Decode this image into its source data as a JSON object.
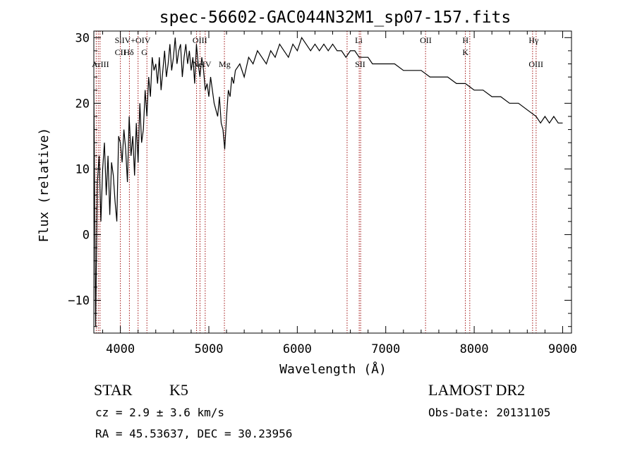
{
  "chart_data": {
    "type": "line",
    "title": "spec-56602-GAC044N32M1_sp07-157.fits",
    "xlabel": "Wavelength (Å)",
    "ylabel": "Flux (relative)",
    "xlim": [
      3700,
      9100
    ],
    "ylim": [
      -15,
      31
    ],
    "xticks": [
      4000,
      5000,
      6000,
      7000,
      8000,
      9000
    ],
    "yticks": [
      -10,
      0,
      10,
      20,
      30
    ],
    "grid": false,
    "series": [
      {
        "values_x": [
          3700,
          3720,
          3740,
          3760,
          3780,
          3800,
          3820,
          3840,
          3860,
          3880,
          3900,
          3920,
          3940,
          3960,
          3980,
          4000,
          4020,
          4040,
          4060,
          4080,
          4100,
          4120,
          4140,
          4160,
          4180,
          4200,
          4220,
          4240,
          4260,
          4280,
          4300,
          4320,
          4340,
          4360,
          4380,
          4400,
          4420,
          4440,
          4460,
          4480,
          4500,
          4520,
          4540,
          4560,
          4580,
          4600,
          4620,
          4640,
          4660,
          4680,
          4700,
          4720,
          4740,
          4760,
          4780,
          4800,
          4820,
          4840,
          4860,
          4880,
          4900,
          4920,
          4940,
          4960,
          4980,
          5000,
          5020,
          5040,
          5060,
          5080,
          5100,
          5120,
          5140,
          5160,
          5180,
          5200,
          5220,
          5240,
          5260,
          5280,
          5300,
          5350,
          5400,
          5450,
          5500,
          5550,
          5600,
          5650,
          5700,
          5750,
          5800,
          5850,
          5900,
          5950,
          6000,
          6050,
          6100,
          6150,
          6200,
          6250,
          6300,
          6350,
          6400,
          6450,
          6500,
          6550,
          6600,
          6650,
          6700,
          6750,
          6800,
          6850,
          6900,
          6950,
          7000,
          7100,
          7200,
          7300,
          7400,
          7500,
          7600,
          7700,
          7800,
          7900,
          8000,
          8100,
          8200,
          8300,
          8400,
          8500,
          8600,
          8700,
          8750,
          8800,
          8850,
          8900,
          8950,
          9000
        ],
        "values_y": [
          22,
          -14,
          8,
          12,
          2,
          10,
          14,
          6,
          12,
          3,
          11,
          9,
          5,
          2,
          15,
          14,
          11,
          16,
          13,
          8,
          18,
          12,
          15,
          9,
          17,
          11,
          20,
          14,
          16,
          22,
          18,
          24,
          21,
          27,
          25,
          26,
          23,
          27,
          22,
          25,
          28,
          24,
          26,
          29,
          25,
          27,
          30,
          26,
          28,
          29,
          24,
          27,
          29,
          26,
          28,
          25,
          27,
          23,
          29,
          26,
          24,
          27,
          25,
          22,
          23,
          21,
          24,
          22,
          20,
          19,
          18,
          21,
          17,
          16,
          13,
          18,
          22,
          21,
          24,
          23,
          25,
          26,
          24,
          27,
          26,
          28,
          27,
          26,
          28,
          27,
          29,
          28,
          27,
          29,
          28,
          30,
          29,
          28,
          29,
          28,
          29,
          28,
          29,
          28,
          28,
          27,
          28,
          28,
          27,
          27,
          27,
          26,
          26,
          26,
          26,
          26,
          25,
          25,
          25,
          24,
          24,
          24,
          23,
          23,
          22,
          22,
          21,
          21,
          20,
          20,
          19,
          18,
          17,
          18,
          17,
          18,
          17,
          17
        ]
      }
    ],
    "line_labels": [
      {
        "top": "SiIV+OIV",
        "bottom": "CII"
      },
      {
        "top": "",
        "bottom": "Hδ"
      },
      {
        "top": "",
        "bottom": "G"
      },
      {
        "top": "OIII",
        "bottom": "NeIV"
      },
      {
        "top": "",
        "bottom": "Mg"
      },
      {
        "top": "Li",
        "bottom": "SII"
      },
      {
        "top": "OII",
        "bottom": ""
      },
      {
        "top": "H",
        "bottom": "K"
      },
      {
        "top": "Hγ",
        "bottom": "OIII"
      },
      {
        "top": "",
        "bottom": "ArIII"
      }
    ],
    "line_markers": [
      3727,
      3750,
      3770,
      4000,
      4102,
      4200,
      4300,
      4861,
      4900,
      4959,
      5176,
      6563,
      6700,
      6716,
      7450,
      7900,
      7950,
      8660,
      8700
    ]
  },
  "info": {
    "object_class": "STAR",
    "subclass": "K5",
    "survey": "LAMOST DR2",
    "redshift": "cz = 2.9 ± 3.6 km/s",
    "obs_date": "Obs-Date: 20131105",
    "coords": "RA =  45.53637, DEC =  30.23956"
  }
}
